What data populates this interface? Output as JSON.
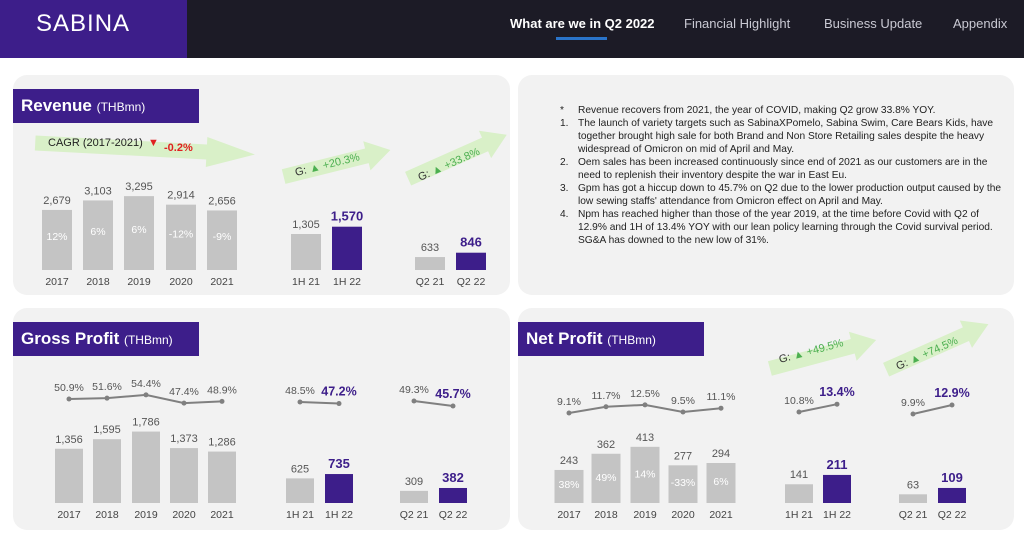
{
  "header": {
    "logo": "SABINA",
    "nav": [
      {
        "label": "What are we in Q2 2022",
        "active": true
      },
      {
        "label": "Financial Highlight",
        "active": false
      },
      {
        "label": "Business Update",
        "active": false
      },
      {
        "label": "Appendix",
        "active": false
      }
    ]
  },
  "colors": {
    "accent": "#3d1e8a",
    "bar_gray": "#c4c4c4",
    "line_gray": "#808080",
    "arrow_green": "#d9f0c8",
    "growth_green": "#4caf50",
    "decline_red": "#e02020"
  },
  "revenue": {
    "title": "Revenue",
    "unit": "(THBmn)",
    "cagr_label": "CAGR (2017-2021)",
    "cagr_value": "-0.2%",
    "g_h": {
      "prefix": "G:",
      "value": "+20.3%"
    },
    "g_q": {
      "prefix": "G:",
      "value": "+33.8%"
    }
  },
  "gross_profit": {
    "title": "Gross Profit",
    "unit": "(THBmn)"
  },
  "net_profit": {
    "title": "Net Profit",
    "unit": "(THBmn)",
    "g_h": {
      "prefix": "G:",
      "value": "+49.5%"
    },
    "g_q": {
      "prefix": "G:",
      "value": "+74.5%"
    }
  },
  "notes": [
    {
      "mark": "*",
      "text": "Revenue recovers from 2021, the year of COVID, making Q2 grow 33.8% YOY."
    },
    {
      "mark": "1.",
      "text": "The launch of variety targets such as SabinaXPomelo, Sabina Swim, Care Bears Kids, have together brought high sale for both Brand and Non Store Retailing sales despite the heavy widespread of Omicron on mid of April and May."
    },
    {
      "mark": "2.",
      "text": "Oem sales has been increased continuously since end of 2021 as our customers are in the need to replenish their inventory despite the war in East Eu."
    },
    {
      "mark": "3.",
      "text": "Gpm has got a hiccup down to 45.7% on Q2 due to the lower production output caused by the low sewing staffs' attendance from Omicron effect on April and May."
    },
    {
      "mark": "4.",
      "text": "Npm has reached higher than those of the year 2019, at the time before Covid with Q2 of 12.9% and 1H of 13.4% YOY with our lean policy learning through the Covid survival period. SG&A has downed to the new low of 31%."
    }
  ],
  "chart_data": [
    {
      "type": "bar",
      "title": "Revenue (THBmn)",
      "groups": [
        {
          "categories": [
            "2017",
            "2018",
            "2019",
            "2020",
            "2021"
          ],
          "values": [
            2679,
            3103,
            3295,
            2914,
            2656
          ],
          "labels": [
            "2,679",
            "3,103",
            "3,295",
            "2,914",
            "2,656"
          ],
          "growth": [
            "12%",
            "6%",
            "6%",
            "-12%",
            "-9%"
          ],
          "highlight_last": false
        },
        {
          "categories": [
            "1H 21",
            "1H 22"
          ],
          "values": [
            1305,
            1570
          ],
          "labels": [
            "1,305",
            "1,570"
          ],
          "highlight_last": true
        },
        {
          "categories": [
            "Q2 21",
            "Q2 22"
          ],
          "values": [
            633,
            846
          ],
          "labels": [
            "633",
            "846"
          ],
          "highlight_last": true
        }
      ]
    },
    {
      "type": "bar",
      "title": "Gross Profit (THBmn)",
      "groups": [
        {
          "categories": [
            "2017",
            "2018",
            "2019",
            "2020",
            "2021"
          ],
          "values": [
            1356,
            1595,
            1786,
            1373,
            1286
          ],
          "labels": [
            "1,356",
            "1,595",
            "1,786",
            "1,373",
            "1,286"
          ],
          "margin": [
            50.9,
            51.6,
            54.4,
            47.4,
            48.9
          ],
          "margin_labels": [
            "50.9%",
            "51.6%",
            "54.4%",
            "47.4%",
            "48.9%"
          ],
          "highlight_last": false
        },
        {
          "categories": [
            "1H 21",
            "1H 22"
          ],
          "values": [
            625,
            735
          ],
          "labels": [
            "625",
            "735"
          ],
          "margin": [
            48.5,
            47.2
          ],
          "margin_labels": [
            "48.5%",
            "47.2%"
          ],
          "highlight_last": true
        },
        {
          "categories": [
            "Q2 21",
            "Q2 22"
          ],
          "values": [
            309,
            382
          ],
          "labels": [
            "309",
            "382"
          ],
          "margin": [
            49.3,
            45.7
          ],
          "margin_labels": [
            "49.3%",
            "45.7%"
          ],
          "highlight_last": true
        }
      ]
    },
    {
      "type": "bar",
      "title": "Net Profit (THBmn)",
      "groups": [
        {
          "categories": [
            "2017",
            "2018",
            "2019",
            "2020",
            "2021"
          ],
          "values": [
            243,
            362,
            413,
            277,
            294
          ],
          "labels": [
            "243",
            "362",
            "413",
            "277",
            "294"
          ],
          "growth": [
            "38%",
            "49%",
            "14%",
            "-33%",
            "6%"
          ],
          "margin": [
            9.1,
            11.7,
            12.5,
            9.5,
            11.1
          ],
          "margin_labels": [
            "9.1%",
            "11.7%",
            "12.5%",
            "9.5%",
            "11.1%"
          ],
          "highlight_last": false
        },
        {
          "categories": [
            "1H 21",
            "1H 22"
          ],
          "values": [
            141,
            211
          ],
          "labels": [
            "141",
            "211"
          ],
          "margin": [
            10.8,
            13.4
          ],
          "margin_labels": [
            "10.8%",
            "13.4%"
          ],
          "highlight_last": true
        },
        {
          "categories": [
            "Q2 21",
            "Q2 22"
          ],
          "values": [
            63,
            109
          ],
          "labels": [
            "63",
            "109"
          ],
          "margin": [
            9.9,
            12.9
          ],
          "margin_labels": [
            "9.9%",
            "12.9%"
          ],
          "highlight_last": true
        }
      ]
    }
  ]
}
